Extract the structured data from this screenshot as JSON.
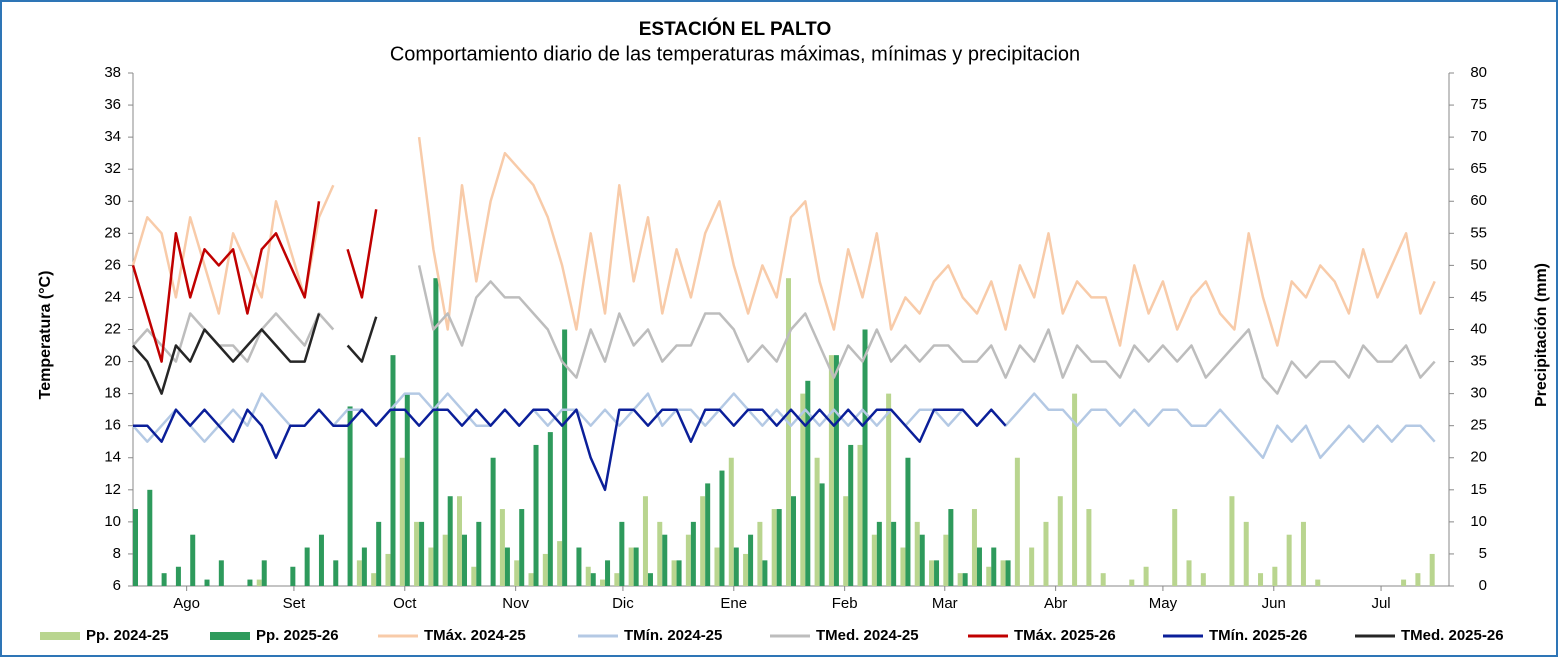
{
  "chart_data": {
    "type": "line",
    "title": "ESTACIÓN EL PALTO",
    "subtitle": "Comportamiento diario de las temperaturas máximas, mínimas y precipitacion",
    "ylabel": "Temperatura (°C)",
    "y2label": "Precipitación (mm)",
    "xlim": [
      0,
      368
    ],
    "xticks": [
      {
        "value": 15,
        "label": "Ago"
      },
      {
        "value": 45,
        "label": "Set"
      },
      {
        "value": 76,
        "label": "Oct"
      },
      {
        "value": 107,
        "label": "Nov"
      },
      {
        "value": 137,
        "label": "Dic"
      },
      {
        "value": 168,
        "label": "Ene"
      },
      {
        "value": 199,
        "label": "Feb"
      },
      {
        "value": 227,
        "label": "Mar"
      },
      {
        "value": 258,
        "label": "Abr"
      },
      {
        "value": 288,
        "label": "May"
      },
      {
        "value": 319,
        "label": "Jun"
      },
      {
        "value": 349,
        "label": "Jul"
      }
    ],
    "ylim": [
      6,
      38
    ],
    "yticks": [
      6,
      8,
      10,
      12,
      14,
      16,
      18,
      20,
      22,
      24,
      26,
      28,
      30,
      32,
      34,
      36,
      38
    ],
    "y2lim": [
      0,
      80
    ],
    "y2ticks": [
      0,
      5,
      10,
      15,
      20,
      25,
      30,
      35,
      40,
      45,
      50,
      55,
      60,
      65,
      70,
      75,
      80
    ],
    "grid": false,
    "legend": "bottom",
    "x": [
      0,
      4,
      8,
      12,
      16,
      20,
      24,
      28,
      32,
      36,
      40,
      44,
      48,
      52,
      56,
      60,
      64,
      68,
      72,
      76,
      80,
      84,
      88,
      92,
      96,
      100,
      104,
      108,
      112,
      116,
      120,
      124,
      128,
      132,
      136,
      140,
      144,
      148,
      152,
      156,
      160,
      164,
      168,
      172,
      176,
      180,
      184,
      188,
      192,
      196,
      200,
      204,
      208,
      212,
      216,
      220,
      224,
      228,
      232,
      236,
      240,
      244,
      248,
      252,
      256,
      260,
      264,
      268,
      272,
      276,
      280,
      284,
      288,
      292,
      296,
      300,
      304,
      308,
      312,
      316,
      320,
      324,
      328,
      332,
      336,
      340,
      344,
      348,
      352,
      356,
      360,
      364
    ],
    "series": [
      {
        "name": "Pp. 2024-25",
        "type": "bar",
        "axis": "y2",
        "color": "#b9d58f",
        "values": [
          0,
          0,
          0,
          0,
          0,
          0,
          0,
          0,
          0,
          1,
          0,
          0,
          0,
          0,
          0,
          0,
          4,
          2,
          5,
          20,
          10,
          6,
          8,
          14,
          3,
          0,
          12,
          4,
          2,
          5,
          7,
          0,
          3,
          1,
          2,
          6,
          14,
          10,
          4,
          8,
          14,
          6,
          20,
          5,
          10,
          12,
          48,
          30,
          20,
          36,
          14,
          22,
          8,
          30,
          6,
          10,
          4,
          8,
          2,
          12,
          3,
          4,
          20,
          6,
          10,
          14,
          30,
          12,
          2,
          0,
          1,
          3,
          0,
          12,
          4,
          2,
          0,
          14,
          10,
          2,
          3,
          8,
          10,
          1,
          0,
          0,
          0,
          0,
          0,
          1,
          2,
          5
        ]
      },
      {
        "name": "Pp. 2025-26",
        "type": "bar",
        "axis": "y2",
        "color": "#2e9a5c",
        "values": [
          12,
          15,
          2,
          3,
          8,
          1,
          4,
          0,
          1,
          4,
          0,
          3,
          6,
          8,
          4,
          28,
          6,
          10,
          36,
          30,
          10,
          48,
          14,
          8,
          10,
          20,
          6,
          12,
          22,
          24,
          40,
          6,
          2,
          4,
          10,
          6,
          2,
          8,
          4,
          10,
          16,
          18,
          6,
          8,
          4,
          12,
          14,
          32,
          16,
          36,
          22,
          40,
          10,
          10,
          20,
          8,
          4,
          12,
          2,
          6,
          6,
          4,
          null,
          null,
          null,
          null,
          null,
          null,
          null,
          null,
          null,
          null,
          null,
          null,
          null,
          null,
          null,
          null,
          null,
          null,
          null,
          null,
          null,
          null,
          null,
          null,
          null,
          null,
          null,
          null,
          null,
          null
        ]
      },
      {
        "name": "TMáx. 2024-25",
        "type": "line",
        "color": "#f8cba9",
        "values": [
          26,
          29,
          28,
          24,
          29,
          26,
          23,
          28,
          26,
          24,
          30,
          27,
          24,
          29,
          31,
          null,
          null,
          null,
          null,
          null,
          34,
          27,
          22,
          31,
          25,
          30,
          33,
          32,
          31,
          29,
          26,
          22,
          28,
          23,
          31,
          25,
          29,
          23,
          27,
          24,
          28,
          30,
          26,
          23,
          26,
          24,
          29,
          30,
          25,
          22,
          27,
          24,
          28,
          22,
          24,
          23,
          25,
          26,
          24,
          23,
          25,
          22,
          26,
          24,
          28,
          23,
          25,
          24,
          24,
          21,
          26,
          23,
          25,
          22,
          24,
          25,
          23,
          22,
          28,
          24,
          21,
          25,
          24,
          26,
          25,
          23,
          27,
          24,
          26,
          28,
          23,
          25
        ]
      },
      {
        "name": "TMín. 2024-25",
        "type": "line",
        "color": "#b4c9e4",
        "values": [
          16,
          15,
          16,
          17,
          16,
          15,
          16,
          17,
          16,
          18,
          17,
          16,
          16,
          17,
          16,
          17,
          17,
          16,
          17,
          18,
          18,
          17,
          18,
          17,
          16,
          16,
          17,
          16,
          17,
          16,
          17,
          17,
          16,
          17,
          16,
          17,
          18,
          16,
          17,
          17,
          16,
          17,
          18,
          17,
          16,
          17,
          16,
          17,
          16,
          17,
          16,
          17,
          16,
          17,
          16,
          17,
          17,
          16,
          17,
          16,
          17,
          16,
          17,
          18,
          17,
          17,
          16,
          17,
          17,
          16,
          17,
          16,
          17,
          17,
          16,
          16,
          17,
          16,
          15,
          14,
          16,
          15,
          16,
          14,
          15,
          16,
          15,
          16,
          15,
          16,
          16,
          15
        ]
      },
      {
        "name": "TMed. 2024-25",
        "type": "line",
        "color": "#bdbdbd",
        "values": [
          21,
          22,
          21,
          20,
          23,
          22,
          21,
          21,
          20,
          22,
          23,
          22,
          21,
          23,
          22,
          null,
          null,
          null,
          null,
          null,
          26,
          22,
          23,
          21,
          24,
          25,
          24,
          24,
          23,
          22,
          20,
          19,
          22,
          20,
          23,
          21,
          22,
          20,
          21,
          21,
          23,
          23,
          22,
          20,
          21,
          20,
          22,
          23,
          21,
          19,
          21,
          20,
          22,
          20,
          21,
          20,
          21,
          21,
          20,
          20,
          21,
          19,
          21,
          20,
          22,
          19,
          21,
          20,
          20,
          19,
          21,
          20,
          21,
          20,
          21,
          19,
          20,
          21,
          22,
          19,
          18,
          20,
          19,
          20,
          20,
          19,
          21,
          20,
          20,
          21,
          19,
          20
        ]
      },
      {
        "name": "TMáx. 2025-26",
        "type": "line",
        "color": "#c00000",
        "values": [
          26,
          23,
          20,
          28,
          24,
          27,
          26,
          27,
          23,
          27,
          28,
          26,
          24,
          30,
          null,
          27,
          24,
          29.5,
          null,
          null,
          null,
          null,
          null,
          null,
          null,
          null,
          null,
          null,
          null,
          null,
          null,
          null,
          null,
          null,
          null,
          null,
          null,
          null,
          null,
          null,
          null,
          null,
          null,
          null,
          null,
          null,
          null,
          null,
          null,
          null,
          null,
          null,
          null,
          null,
          null,
          null,
          null,
          null,
          null,
          null,
          null,
          null,
          null,
          null,
          null,
          null,
          null,
          null,
          null,
          null,
          null,
          null,
          null,
          null,
          null,
          null,
          null,
          null,
          null,
          null,
          null,
          null,
          null,
          null,
          null,
          null,
          null,
          null,
          null,
          null,
          null,
          null
        ]
      },
      {
        "name": "TMín. 2025-26",
        "type": "line",
        "color": "#0b1f99",
        "values": [
          16,
          16,
          15,
          17,
          16,
          17,
          16,
          15,
          17,
          16,
          14,
          16,
          16,
          17,
          16,
          16,
          17,
          16,
          17,
          17,
          16,
          17,
          17,
          16,
          17,
          16,
          17,
          16,
          17,
          17,
          16,
          17,
          14,
          12,
          17,
          17,
          16,
          17,
          17,
          15,
          17,
          17,
          16,
          17,
          17,
          16,
          17,
          16,
          17,
          16,
          17,
          16,
          17,
          17,
          16,
          15,
          17,
          17,
          17,
          16,
          17,
          16,
          null,
          null,
          null,
          null,
          null,
          null,
          null,
          null,
          null,
          null,
          null,
          null,
          null,
          null,
          null,
          null,
          null,
          null,
          null,
          null,
          null,
          null,
          null,
          null,
          null,
          null,
          null,
          null,
          null,
          null
        ]
      },
      {
        "name": "TMed. 2025-26",
        "type": "line",
        "color": "#262626",
        "values": [
          21,
          20,
          18,
          21,
          20,
          22,
          21,
          20,
          21,
          22,
          21,
          20,
          20,
          23,
          null,
          21,
          20,
          22.8,
          null,
          null,
          null,
          null,
          null,
          null,
          null,
          null,
          null,
          null,
          null,
          null,
          null,
          null,
          null,
          null,
          null,
          null,
          null,
          null,
          null,
          null,
          null,
          null,
          null,
          null,
          null,
          null,
          null,
          null,
          null,
          null,
          null,
          null,
          null,
          null,
          null,
          null,
          null,
          null,
          null,
          null,
          null,
          null,
          null,
          null,
          null,
          null,
          null,
          null,
          null,
          null,
          null,
          null,
          null,
          null,
          null,
          null,
          null,
          null,
          null,
          null,
          null,
          null,
          null,
          null,
          null,
          null,
          null,
          null,
          null,
          null,
          null,
          null
        ]
      }
    ]
  }
}
